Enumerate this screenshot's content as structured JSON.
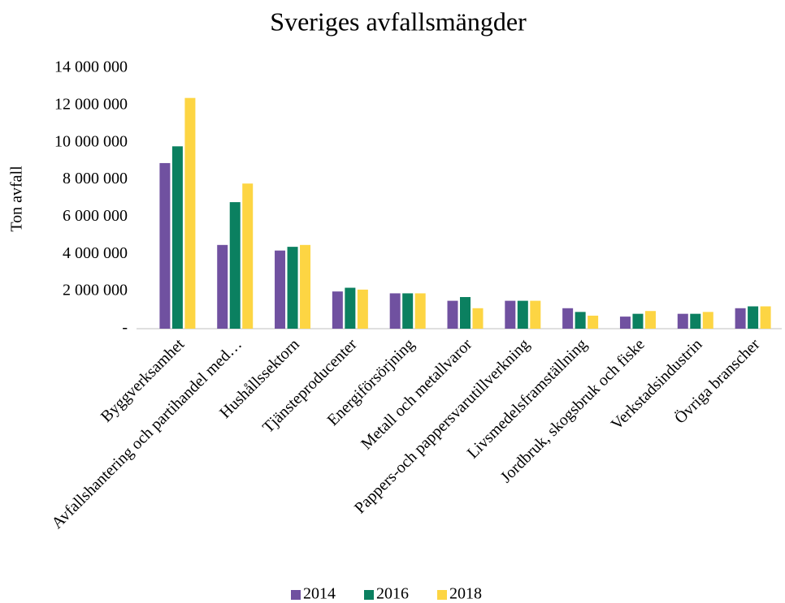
{
  "chart_data": {
    "type": "bar",
    "title": "Sveriges avfallsmängder",
    "y_label": "Ton avfall",
    "categories": [
      "Byggverksamhet",
      "Avfallshantering och partihandel med…",
      "Hushållssektorn",
      "Tjänsteproducenter",
      "Energiförsörjning",
      "Metall och metallvaror",
      "Pappers-och pappersvarutillverkning",
      "Livsmedelsframställning",
      "Jordbruk, skogsbruk och fiske",
      "Verkstadsindustrin",
      "Övriga branscher"
    ],
    "series": [
      {
        "name": "2014",
        "color": "#7051a0",
        "values": [
          8900000,
          4500000,
          4200000,
          2000000,
          1900000,
          1500000,
          1500000,
          1100000,
          650000,
          800000,
          1100000
        ]
      },
      {
        "name": "2016",
        "color": "#0b8060",
        "values": [
          9800000,
          6800000,
          4400000,
          2200000,
          1900000,
          1700000,
          1500000,
          900000,
          800000,
          800000,
          1200000
        ]
      },
      {
        "name": "2018",
        "color": "#fdd543",
        "values": [
          12400000,
          7800000,
          4500000,
          2100000,
          1900000,
          1100000,
          1500000,
          700000,
          950000,
          900000,
          1200000
        ]
      }
    ],
    "ylim": [
      0,
      14000000
    ],
    "yticks": [
      {
        "value": 0,
        "label": "-"
      },
      {
        "value": 2000000,
        "label": "2 000 000"
      },
      {
        "value": 4000000,
        "label": "4 000 000"
      },
      {
        "value": 6000000,
        "label": "6 000 000"
      },
      {
        "value": 8000000,
        "label": "8 000 000"
      },
      {
        "value": 10000000,
        "label": "10 000 000"
      },
      {
        "value": 12000000,
        "label": "12 000 000"
      },
      {
        "value": 14000000,
        "label": "14 000 000"
      }
    ],
    "grid": false,
    "legend": "bottom"
  }
}
